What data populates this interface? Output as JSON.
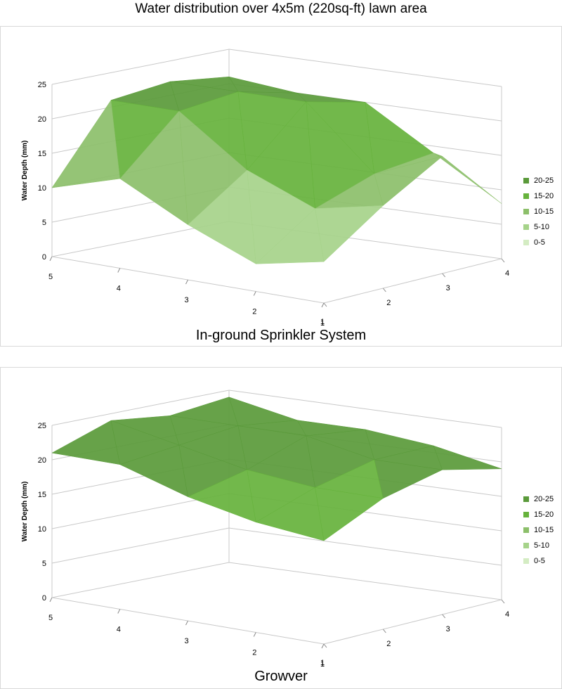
{
  "page": {
    "title": "Water distribution over 4x5m (220sq-ft) lawn area"
  },
  "colors": {
    "grid": "#c8c8c8",
    "surface_stroke": "#ffffff",
    "band_colors": [
      "#d4ecc3",
      "#a6d38a",
      "#8cbf6a",
      "#66b23c",
      "#5a9a3a"
    ]
  },
  "chart_data": [
    {
      "type": "surface",
      "caption": "In-ground Sprinkler System",
      "ylabel": "Water Depth (mm)",
      "zlim": [
        0,
        25
      ],
      "z_ticks": [
        "0",
        "5",
        "10",
        "15",
        "20",
        "25"
      ],
      "rows": [
        "1",
        "2",
        "3",
        "4",
        "5"
      ],
      "cols": [
        "1",
        "2",
        "3",
        "4"
      ],
      "grid": true,
      "legend_position": "right",
      "legend": [
        "20-25",
        "15-20",
        "10-15",
        "5-10",
        "0-5"
      ],
      "values": [
        [
          6,
          12,
          17,
          8
        ],
        [
          4,
          10,
          13,
          14
        ],
        [
          8,
          14,
          22,
          20
        ],
        [
          13,
          21,
          22,
          20
        ],
        [
          10,
          21,
          22,
          21
        ]
      ]
    },
    {
      "type": "surface",
      "caption": "Growver",
      "ylabel": "Water Depth (mm)",
      "zlim": [
        0,
        25
      ],
      "z_ticks": [
        "0",
        "5",
        "10",
        "15",
        "20",
        "25"
      ],
      "rows": [
        "1",
        "2",
        "3",
        "4",
        "5"
      ],
      "cols": [
        "1",
        "2",
        "3",
        "4"
      ],
      "grid": true,
      "legend_position": "right",
      "legend": [
        "20-25",
        "15-20",
        "10-15",
        "5-10",
        "0-5"
      ],
      "values": [
        [
          15,
          19,
          21,
          19
        ],
        [
          16,
          19,
          21,
          21
        ],
        [
          18,
          20,
          23,
          22
        ],
        [
          21,
          22,
          23,
          22
        ],
        [
          21,
          24,
          23,
          24
        ]
      ]
    }
  ]
}
